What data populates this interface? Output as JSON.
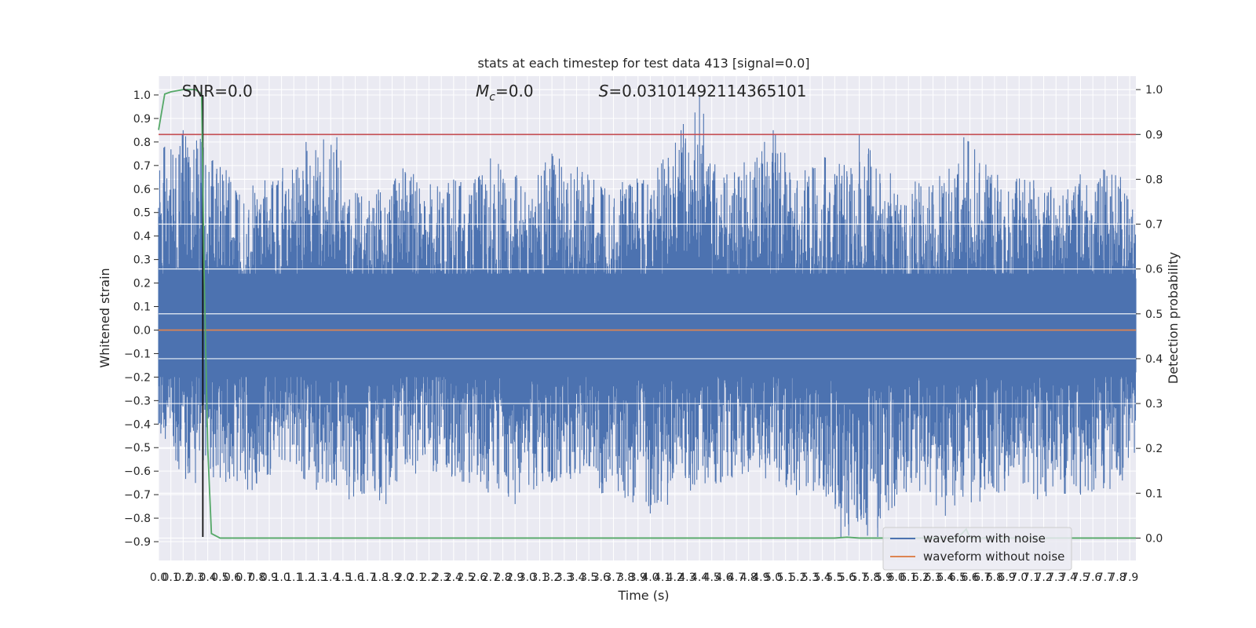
{
  "chart_data": {
    "type": "line",
    "title": "stats at each timestep for test data 413 [signal=0.0]",
    "xlabel": "Time (s)",
    "ylabel": "Whitened strain",
    "ylabel_right": "Detection probability",
    "xlim": [
      0.0,
      7.95
    ],
    "ylim": [
      -0.98,
      1.08
    ],
    "ylim_right": [
      -0.05,
      1.03
    ],
    "x_ticks": [
      0.0,
      0.1,
      0.2,
      0.3,
      0.4,
      0.5,
      0.6,
      0.7,
      0.8,
      0.9,
      1.0,
      1.1,
      1.2,
      1.3,
      1.4,
      1.5,
      1.6,
      1.7,
      1.8,
      1.9,
      2.0,
      2.1,
      2.2,
      2.3,
      2.4,
      2.5,
      2.6,
      2.7,
      2.8,
      2.9,
      3.0,
      3.1,
      3.2,
      3.3,
      3.4,
      3.5,
      3.6,
      3.7,
      3.8,
      3.9,
      4.0,
      4.1,
      4.2,
      4.3,
      4.4,
      4.5,
      4.6,
      4.7,
      4.8,
      4.9,
      5.0,
      5.1,
      5.2,
      5.3,
      5.4,
      5.5,
      5.6,
      5.7,
      5.8,
      5.9,
      6.0,
      6.1,
      6.2,
      6.3,
      6.4,
      6.5,
      6.6,
      6.7,
      6.8,
      6.9,
      7.0,
      7.1,
      7.2,
      7.3,
      7.4,
      7.5,
      7.6,
      7.7,
      7.8,
      7.9
    ],
    "x_tick_labels": [
      "0.0",
      "0.1",
      "0.2",
      "0.3",
      "0.4",
      "0.5",
      "0.6",
      "0.7",
      "0.8",
      "0.9",
      "1.0",
      "1.1",
      "1.2",
      "1.3",
      "1.4",
      "1.5",
      "1.6",
      "1.7",
      "1.8",
      "1.9",
      "2.0",
      "2.1",
      "2.2",
      "2.3",
      "2.4",
      "2.5",
      "2.6",
      "2.7",
      "2.8",
      "2.9",
      "3.0",
      "3.1",
      "3.2",
      "3.3",
      "3.4",
      "3.5",
      "3.6",
      "3.7",
      "3.8",
      "3.9",
      "4.0",
      "4.1",
      "4.2",
      "4.3",
      "4.4",
      "4.5",
      "4.6",
      "4.7",
      "4.8",
      "4.9",
      "5.0",
      "5.1",
      "5.2",
      "5.3",
      "5.4",
      "5.5",
      "5.6",
      "5.7",
      "5.8",
      "5.9",
      "6.0",
      "6.1",
      "6.2",
      "6.3",
      "6.4",
      "6.5",
      "6.6",
      "6.7",
      "6.8",
      "6.9",
      "7.0",
      "7.1",
      "7.2",
      "7.3",
      "7.4",
      "7.5",
      "7.6",
      "7.7",
      "7.8",
      "7.9"
    ],
    "y_ticks": [
      -0.9,
      -0.8,
      -0.7,
      -0.6,
      -0.5,
      -0.4,
      -0.3,
      -0.2,
      -0.1,
      0.0,
      0.1,
      0.2,
      0.3,
      0.4,
      0.5,
      0.6,
      0.7,
      0.8,
      0.9,
      1.0
    ],
    "y_tick_labels": [
      "−0.9",
      "−0.8",
      "−0.7",
      "−0.6",
      "−0.5",
      "−0.4",
      "−0.3",
      "−0.2",
      "−0.1",
      "0.0",
      "0.1",
      "0.2",
      "0.3",
      "0.4",
      "0.5",
      "0.6",
      "0.7",
      "0.8",
      "0.9",
      "1.0"
    ],
    "y_ticks_right": [
      0.0,
      0.1,
      0.2,
      0.3,
      0.4,
      0.5,
      0.6,
      0.7,
      0.8,
      0.9,
      1.0
    ],
    "y_tick_labels_right": [
      "0.0",
      "0.1",
      "0.2",
      "0.3",
      "0.4",
      "0.5",
      "0.6",
      "0.7",
      "0.8",
      "0.9",
      "1.0"
    ],
    "grid": true,
    "legend_position": "bottom-right",
    "series": [
      {
        "name": "waveform with noise",
        "axis": "left",
        "color": "#4c72b0",
        "style": "dense noise trace",
        "envelope": [
          [
            0.0,
            -0.43,
            0.78
          ],
          [
            0.2,
            -0.65,
            0.85
          ],
          [
            0.4,
            -0.62,
            0.8
          ],
          [
            0.6,
            -0.7,
            0.65
          ],
          [
            0.8,
            -0.68,
            0.62
          ],
          [
            1.0,
            -0.58,
            0.7
          ],
          [
            1.2,
            -0.64,
            0.8
          ],
          [
            1.4,
            -0.74,
            0.82
          ],
          [
            1.6,
            -0.72,
            0.62
          ],
          [
            1.8,
            -0.74,
            0.6
          ],
          [
            2.0,
            -0.62,
            0.7
          ],
          [
            2.2,
            -0.6,
            0.62
          ],
          [
            2.4,
            -0.64,
            0.65
          ],
          [
            2.6,
            -0.66,
            0.68
          ],
          [
            2.8,
            -0.74,
            0.73
          ],
          [
            3.0,
            -0.7,
            0.62
          ],
          [
            3.2,
            -0.68,
            0.75
          ],
          [
            3.4,
            -0.64,
            0.7
          ],
          [
            3.6,
            -0.7,
            0.62
          ],
          [
            3.8,
            -0.72,
            0.66
          ],
          [
            4.0,
            -0.78,
            0.64
          ],
          [
            4.2,
            -0.74,
            0.85
          ],
          [
            4.4,
            -0.68,
            1.0
          ],
          [
            4.6,
            -0.66,
            0.66
          ],
          [
            4.8,
            -0.62,
            0.74
          ],
          [
            5.0,
            -0.64,
            0.85
          ],
          [
            5.2,
            -0.72,
            0.66
          ],
          [
            5.4,
            -0.68,
            0.74
          ],
          [
            5.6,
            -0.88,
            0.7
          ],
          [
            5.8,
            -0.88,
            0.83
          ],
          [
            6.0,
            -0.74,
            0.62
          ],
          [
            6.2,
            -0.7,
            0.64
          ],
          [
            6.4,
            -0.79,
            0.68
          ],
          [
            6.6,
            -0.74,
            0.82
          ],
          [
            6.8,
            -0.72,
            0.66
          ],
          [
            7.0,
            -0.7,
            0.68
          ],
          [
            7.2,
            -0.72,
            0.62
          ],
          [
            7.4,
            -0.7,
            0.68
          ],
          [
            7.6,
            -0.7,
            0.7
          ],
          [
            7.8,
            -0.68,
            0.68
          ],
          [
            7.95,
            -0.56,
            0.52
          ]
        ],
        "peaks": [
          [
            0.05,
            0.78
          ],
          [
            0.2,
            0.85
          ],
          [
            0.35,
            0.8
          ],
          [
            0.55,
            0.68
          ],
          [
            1.2,
            0.8
          ],
          [
            1.45,
            0.82
          ],
          [
            2.7,
            0.73
          ],
          [
            3.2,
            0.75
          ],
          [
            4.25,
            0.85
          ],
          [
            4.4,
            1.0
          ],
          [
            5.0,
            0.85
          ],
          [
            5.7,
            0.83
          ],
          [
            6.55,
            0.82
          ],
          [
            0.3,
            -0.65
          ],
          [
            1.55,
            -0.72
          ],
          [
            1.85,
            -0.74
          ],
          [
            2.9,
            -0.74
          ],
          [
            4.0,
            -0.78
          ],
          [
            5.55,
            -0.88
          ],
          [
            5.85,
            -0.88
          ],
          [
            6.4,
            -0.79
          ],
          [
            7.15,
            -0.72
          ],
          [
            7.5,
            -0.7
          ]
        ]
      },
      {
        "name": "waveform without noise",
        "axis": "left",
        "color": "#dd8452",
        "x": [
          0.0,
          7.95
        ],
        "y": [
          0.0,
          0.0
        ]
      },
      {
        "axis": "right",
        "color": "#55a868",
        "x": [
          0.0,
          0.05,
          0.1,
          0.2,
          0.3,
          0.35,
          0.37,
          0.4,
          0.43,
          0.5,
          1.0,
          5.5,
          5.6,
          5.7,
          6.5,
          6.57,
          6.6,
          6.7,
          7.5,
          7.95
        ],
        "y": [
          0.91,
          0.99,
          0.995,
          1.0,
          1.0,
          0.99,
          0.6,
          0.2,
          0.01,
          0.0,
          0.0,
          0.0,
          0.002,
          0.0,
          0.0,
          0.02,
          0.0,
          0.0,
          0.0,
          0.0
        ]
      },
      {
        "axis": "right",
        "color": "#c44e52",
        "style": "horizontal threshold line",
        "x": [
          0.0,
          7.95
        ],
        "y": [
          0.9,
          0.9
        ]
      },
      {
        "axis": "left",
        "color": "#111111",
        "style": "vertical marker line",
        "x": [
          0.36,
          0.36
        ],
        "y": [
          -0.88,
          1.0
        ]
      }
    ],
    "annotations": [
      {
        "text": "SNR=0.0",
        "x": 0.19,
        "y": 1.0
      },
      {
        "text_main": "M",
        "text_sub": "c",
        "text_rest": "=0.0",
        "x": 2.58,
        "y": 1.0
      },
      {
        "text_main": "S",
        "text_rest": "=0.03101492114365101",
        "x": 3.58,
        "y": 1.0
      }
    ]
  }
}
